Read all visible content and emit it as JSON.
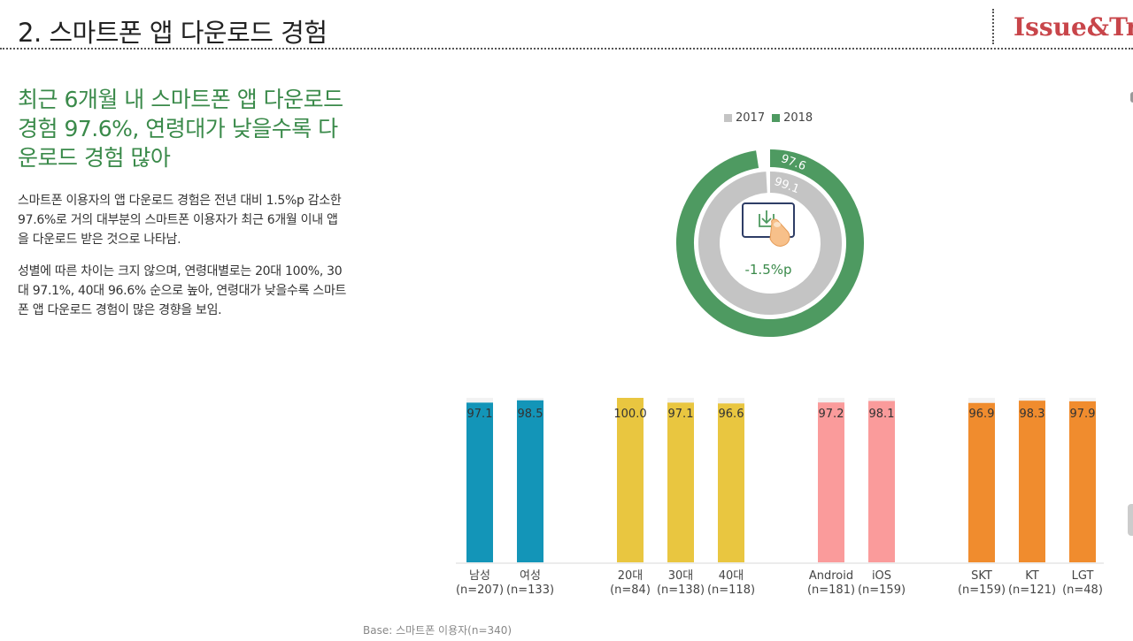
{
  "header": {
    "title": "2. 스마트폰 앱 다운로드 경험",
    "brand": "Issue&Tre"
  },
  "headline": "최근 6개월 내 스마트폰 앱 다운로드 경험 97.6%, 연령대가 낮을수록 다운로드 경험 많아",
  "paragraphs": [
    "스마트폰 이용자의 앱 다운로드 경험은 전년 대비 1.5%p 감소한 97.6%로 거의 대부분의 스마트폰 이용자가 최근 6개월 이내 앱을 다운로드 받은 것으로 나타남.",
    "성별에 따른 차이는 크지 않으며, 연령대별로는 20대 100%, 30대 97.1%, 40대 96.6% 순으로 높아, 연령대가 낮을수록 스마트폰 앱 다운로드 경험이 많은 경향을 보임."
  ],
  "base_note": "Base: 스마트폰 이용자(n=340)",
  "icon": "download-phone-icon",
  "chart_data": [
    {
      "type": "pie",
      "subtype": "donut",
      "legend": [
        "2017",
        "2018"
      ],
      "legend_position": "top",
      "series": [
        {
          "name": "2017",
          "value": 99.1,
          "color": "#c4c4c4",
          "label": "99.1"
        },
        {
          "name": "2018",
          "value": 97.6,
          "color": "#4e9a61",
          "label": "97.6"
        }
      ],
      "center_label": "-1.5%p"
    },
    {
      "type": "bar",
      "ylim": [
        0,
        100
      ],
      "grid": false,
      "groups": [
        {
          "name": "gender",
          "color": "#1395b8",
          "categories": [
            "남성",
            "여성"
          ],
          "ns": [
            "(n=207)",
            "(n=133)"
          ],
          "values": [
            97.1,
            98.5
          ],
          "labels": [
            "97.1",
            "98.5"
          ]
        },
        {
          "name": "age",
          "color": "#e9c640",
          "categories": [
            "20대",
            "30대",
            "40대"
          ],
          "ns": [
            "(n=84)",
            "(n=138)",
            "(n=118)"
          ],
          "values": [
            100.0,
            97.1,
            96.6
          ],
          "labels": [
            "100.0",
            "97.1",
            "96.6"
          ]
        },
        {
          "name": "os",
          "color": "#fa9b9b",
          "categories": [
            "Android",
            "iOS"
          ],
          "ns": [
            "(n=181)",
            "(n=159)"
          ],
          "values": [
            97.2,
            98.1
          ],
          "labels": [
            "97.2",
            "98.1"
          ]
        },
        {
          "name": "carrier",
          "color": "#f08c2e",
          "categories": [
            "SKT",
            "KT",
            "LGT"
          ],
          "ns": [
            "(n=159)",
            "(n=121)",
            "(n=48)"
          ],
          "values": [
            96.9,
            98.3,
            97.9
          ],
          "labels": [
            "96.9",
            "98.3",
            "97.9"
          ]
        }
      ]
    }
  ]
}
